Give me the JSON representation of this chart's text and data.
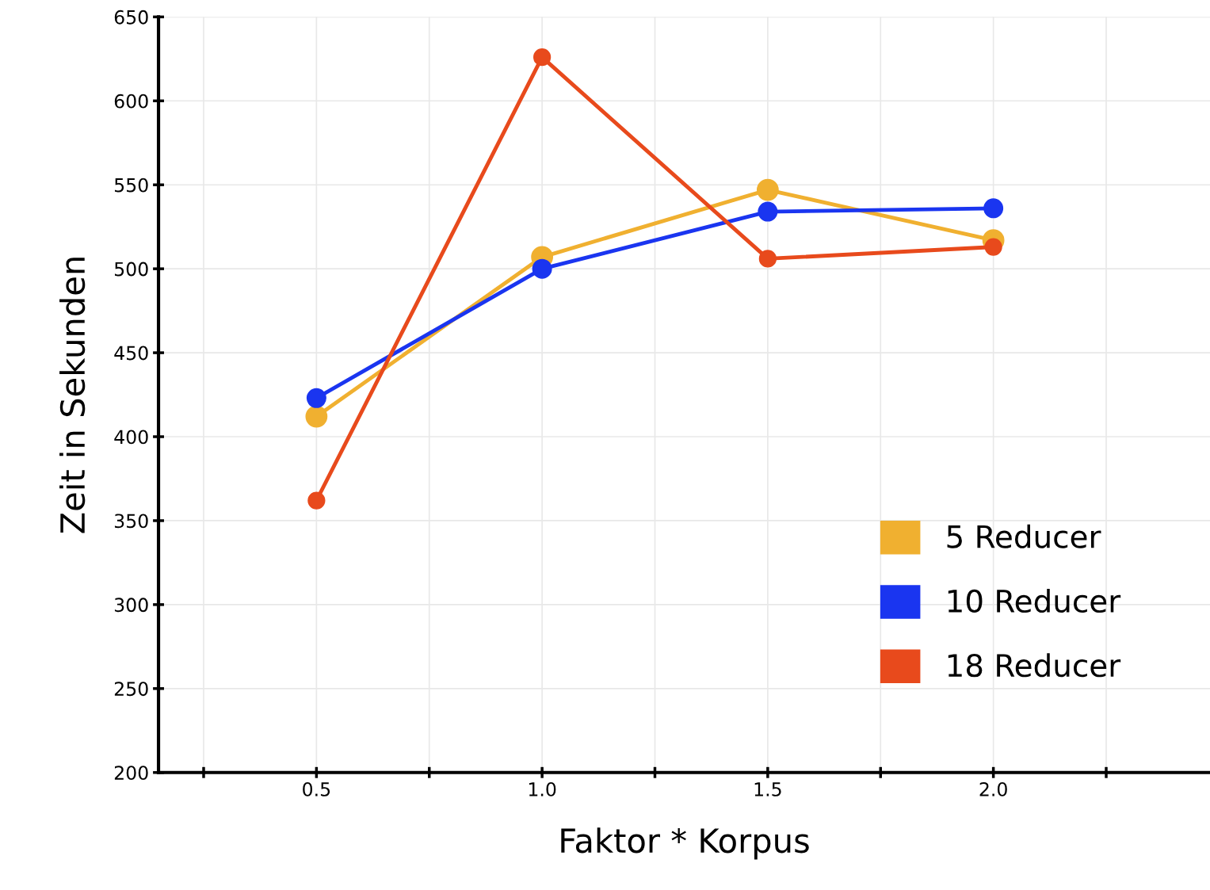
{
  "chart_data": {
    "type": "line",
    "xlabel": "Faktor * Korpus",
    "ylabel": "Zeit in Sekunden",
    "x": [
      0.5,
      1.0,
      1.5,
      2.0
    ],
    "series": [
      {
        "name": "5 Reducer",
        "color": "#f0b030",
        "values": [
          412,
          507,
          547,
          517
        ]
      },
      {
        "name": "10 Reducer",
        "color": "#1a35f0",
        "values": [
          423,
          500,
          534,
          536
        ]
      },
      {
        "name": "18 Reducer",
        "color": "#e84a1c",
        "values": [
          362,
          626,
          506,
          513
        ]
      }
    ],
    "xlim": [
      0.15,
      2.48
    ],
    "xticks": [
      {
        "value": 0.25,
        "label": null
      },
      {
        "value": 0.5,
        "label": "0.5"
      },
      {
        "value": 0.75,
        "label": null
      },
      {
        "value": 1.0,
        "label": "1.0"
      },
      {
        "value": 1.25,
        "label": null
      },
      {
        "value": 1.5,
        "label": "1.5"
      },
      {
        "value": 1.75,
        "label": null
      },
      {
        "value": 2.0,
        "label": "2.0"
      },
      {
        "value": 2.25,
        "label": null
      }
    ],
    "ylim": [
      200,
      650
    ],
    "yticks": [
      200,
      250,
      300,
      350,
      400,
      450,
      500,
      550,
      600,
      650
    ],
    "grid": true,
    "legend": "lower right",
    "marker": "circle",
    "line_style": "solid"
  }
}
